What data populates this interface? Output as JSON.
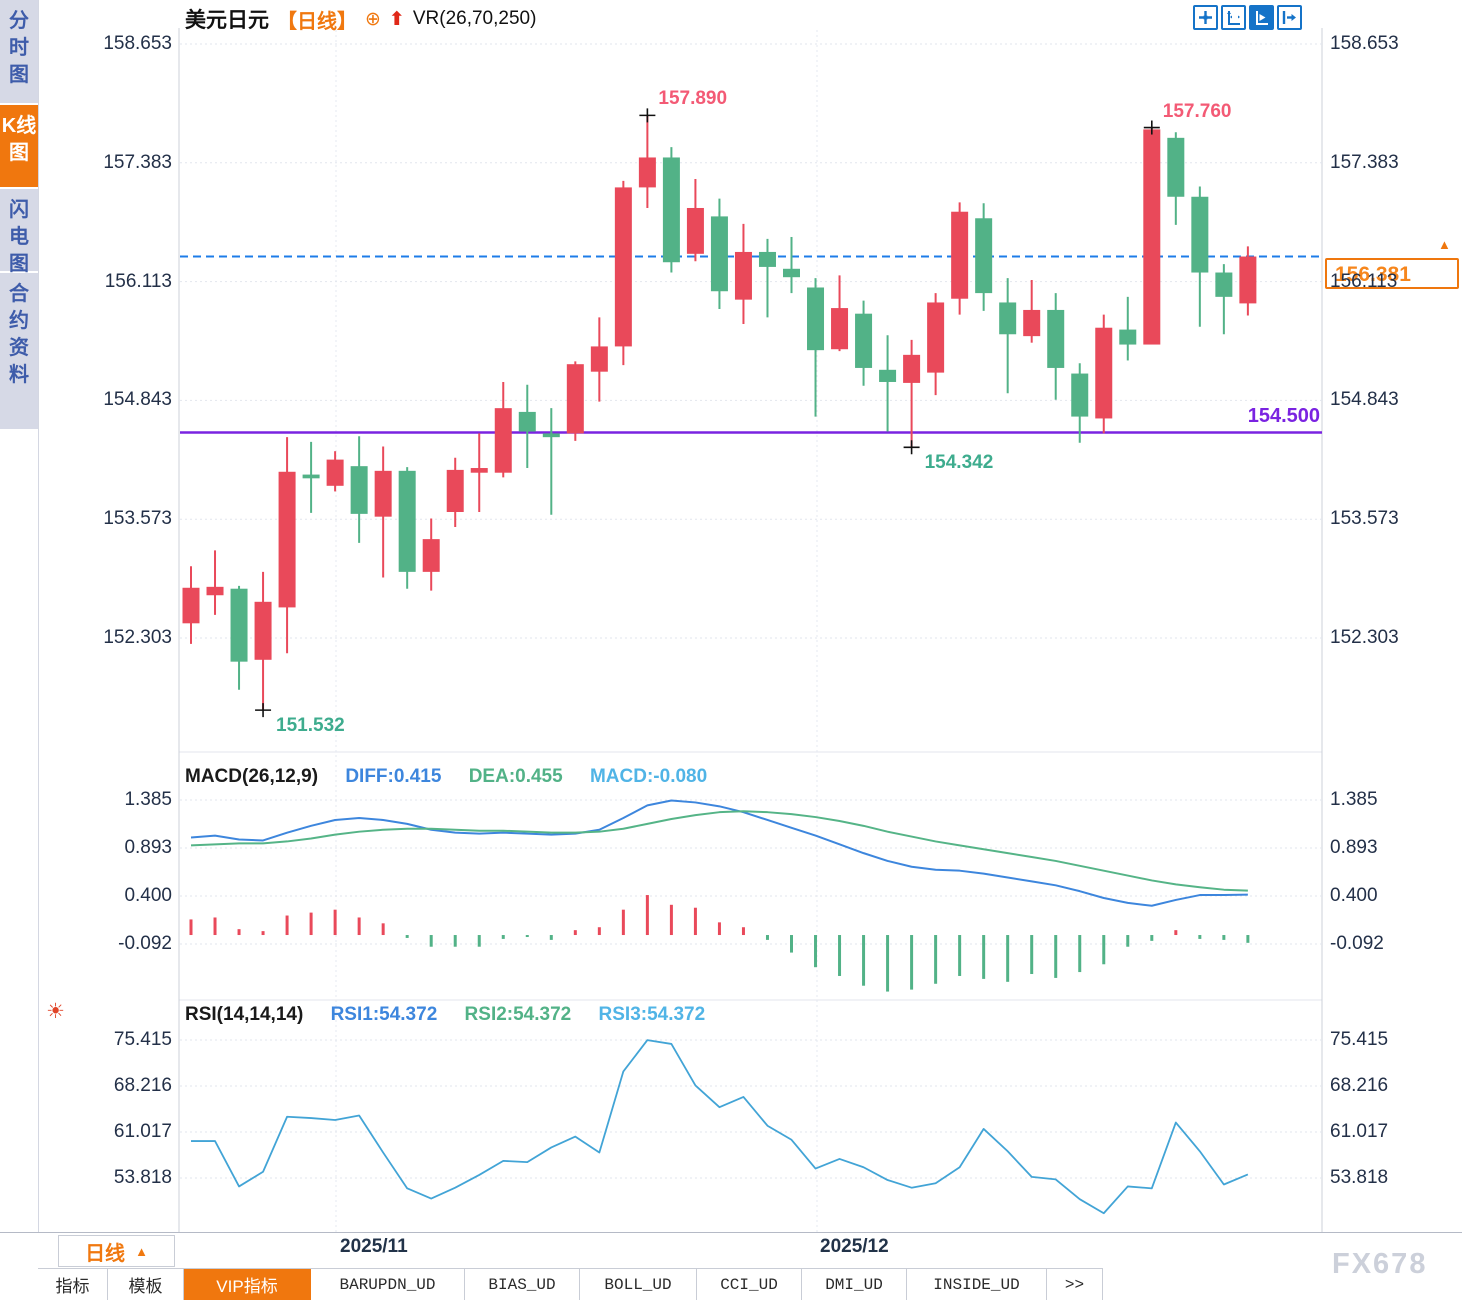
{
  "sidebar": {
    "items": [
      {
        "label": "分时图",
        "active": false
      },
      {
        "label": "K线图",
        "active": true
      },
      {
        "label": "闪电图",
        "active": false
      },
      {
        "label": "合约资料",
        "active": false
      }
    ]
  },
  "title": {
    "symbol": "美元日元",
    "period_tag": "【日线】",
    "indicator": "VR(26,70,250)"
  },
  "toolbar": {
    "buttons": [
      "pan-crosshair",
      "axis-scale",
      "auto-scroll",
      "jump-latest"
    ],
    "active_index": 2
  },
  "macd_header": {
    "name": "MACD(26,12,9)",
    "diff": "DIFF:0.415",
    "dea": "DEA:0.455",
    "macd": "MACD:-0.080"
  },
  "rsi_header": {
    "name": "RSI(14,14,14)",
    "rsi1": "RSI1:54.372",
    "rsi2": "RSI2:54.372",
    "rsi3": "RSI3:54.372"
  },
  "period_selector": {
    "label": "日线",
    "arrow": "▲"
  },
  "x_axis": {
    "dates": [
      "2025/11",
      "2025/12"
    ]
  },
  "tabs": {
    "items": [
      {
        "label": "指标",
        "active": false
      },
      {
        "label": "模板",
        "active": false
      },
      {
        "label": "VIP指标",
        "active": true
      },
      {
        "label": "BARUPDN_UD",
        "active": false
      },
      {
        "label": "BIAS_UD",
        "active": false
      },
      {
        "label": "BOLL_UD",
        "active": false
      },
      {
        "label": "CCI_UD",
        "active": false
      },
      {
        "label": "DMI_UD",
        "active": false
      },
      {
        "label": "INSIDE_UD",
        "active": false
      },
      {
        "label": ">>",
        "active": false
      }
    ]
  },
  "watermark": "FX678",
  "colors": {
    "up": "#e9495a",
    "down": "#52b287",
    "diff_line": "#3d86dd",
    "dea_line": "#55b487",
    "rsi_line": "#42a4d6",
    "current_price_line": "#1d7ce8",
    "support_line": "#7a23e1",
    "accent_orange": "#f0770e",
    "annotation_high": "#f35a75",
    "annotation_low": "#3eac8e",
    "axis_text": "#233048",
    "grid": "#e2e6ed",
    "cross": "#111111"
  },
  "chart_data": {
    "type": "candlestick",
    "price": {
      "axis_labels": [
        "158.653",
        "157.383",
        "156.113",
        "154.843",
        "153.573",
        "152.303"
      ],
      "current": 156.381,
      "current_label": "156.381",
      "support": 154.5,
      "support_label": "154.500",
      "candles": [
        [
          152.46,
          153.07,
          152.24,
          152.84
        ],
        [
          152.76,
          153.24,
          152.55,
          152.85
        ],
        [
          152.83,
          152.86,
          151.75,
          152.05
        ],
        [
          152.07,
          153.01,
          151.532,
          152.69
        ],
        [
          152.63,
          154.45,
          152.14,
          154.08
        ],
        [
          154.05,
          154.4,
          153.64,
          154.01
        ],
        [
          153.93,
          154.3,
          153.87,
          154.21
        ],
        [
          154.14,
          154.46,
          153.32,
          153.63
        ],
        [
          153.6,
          154.35,
          152.95,
          154.09
        ],
        [
          154.09,
          154.13,
          152.83,
          153.01
        ],
        [
          153.01,
          153.58,
          152.81,
          153.36
        ],
        [
          153.65,
          154.23,
          153.49,
          154.1
        ],
        [
          154.07,
          154.49,
          153.65,
          154.12
        ],
        [
          154.07,
          155.04,
          154.02,
          154.76
        ],
        [
          154.72,
          155.01,
          154.12,
          154.51
        ],
        [
          154.49,
          154.76,
          153.62,
          154.45
        ],
        [
          154.49,
          155.26,
          154.41,
          155.23
        ],
        [
          155.15,
          155.73,
          154.83,
          155.42
        ],
        [
          155.42,
          157.19,
          155.22,
          157.12
        ],
        [
          157.12,
          157.89,
          156.9,
          157.44
        ],
        [
          157.44,
          157.55,
          156.21,
          156.32
        ],
        [
          156.41,
          157.21,
          156.33,
          156.9
        ],
        [
          156.81,
          157.0,
          155.82,
          156.01
        ],
        [
          155.92,
          156.73,
          155.66,
          156.43
        ],
        [
          156.43,
          156.57,
          155.73,
          156.27
        ],
        [
          156.25,
          156.59,
          155.99,
          156.16
        ],
        [
          156.05,
          156.15,
          154.67,
          155.38
        ],
        [
          155.39,
          156.18,
          155.37,
          155.83
        ],
        [
          155.77,
          155.91,
          155.0,
          155.19
        ],
        [
          155.17,
          155.54,
          154.51,
          155.04
        ],
        [
          155.03,
          155.49,
          154.342,
          155.33
        ],
        [
          155.14,
          155.99,
          154.9,
          155.89
        ],
        [
          155.93,
          156.96,
          155.76,
          156.86
        ],
        [
          156.79,
          156.95,
          155.8,
          155.99
        ],
        [
          155.89,
          156.15,
          154.92,
          155.55
        ],
        [
          155.53,
          156.13,
          155.46,
          155.81
        ],
        [
          155.81,
          155.99,
          154.85,
          155.19
        ],
        [
          155.13,
          155.24,
          154.39,
          154.67
        ],
        [
          154.65,
          155.76,
          154.49,
          155.62
        ],
        [
          155.6,
          155.95,
          155.27,
          155.44
        ],
        [
          155.44,
          157.76,
          155.44,
          157.74
        ],
        [
          157.65,
          157.71,
          156.72,
          157.02
        ],
        [
          157.02,
          157.13,
          155.63,
          156.21
        ],
        [
          156.21,
          156.3,
          155.55,
          155.95
        ],
        [
          155.88,
          156.49,
          155.75,
          156.381
        ]
      ],
      "markers": [
        {
          "index": 19,
          "type": "high",
          "value": 157.89,
          "label": "157.890"
        },
        {
          "index": 40,
          "type": "high",
          "value": 157.76,
          "label": "157.760"
        },
        {
          "index": 3,
          "type": "low",
          "value": 151.532,
          "label": "151.532"
        },
        {
          "index": 30,
          "type": "low",
          "value": 154.342,
          "label": "154.342"
        }
      ]
    },
    "macd": {
      "axis_labels": [
        "1.385",
        "0.893",
        "0.400",
        "-0.092"
      ],
      "diff": [
        1.0,
        1.02,
        0.98,
        0.97,
        1.05,
        1.12,
        1.18,
        1.2,
        1.18,
        1.14,
        1.08,
        1.05,
        1.04,
        1.05,
        1.04,
        1.03,
        1.04,
        1.08,
        1.2,
        1.33,
        1.38,
        1.36,
        1.32,
        1.26,
        1.18,
        1.1,
        1.02,
        0.93,
        0.84,
        0.76,
        0.7,
        0.67,
        0.66,
        0.63,
        0.59,
        0.55,
        0.51,
        0.45,
        0.38,
        0.33,
        0.3,
        0.36,
        0.41,
        0.41,
        0.415
      ],
      "dea": [
        0.92,
        0.93,
        0.94,
        0.94,
        0.96,
        0.99,
        1.03,
        1.06,
        1.08,
        1.09,
        1.09,
        1.08,
        1.07,
        1.07,
        1.06,
        1.05,
        1.05,
        1.06,
        1.09,
        1.14,
        1.19,
        1.23,
        1.26,
        1.27,
        1.26,
        1.24,
        1.21,
        1.17,
        1.12,
        1.06,
        1.01,
        0.96,
        0.92,
        0.88,
        0.84,
        0.8,
        0.76,
        0.71,
        0.66,
        0.61,
        0.56,
        0.52,
        0.49,
        0.465,
        0.455
      ],
      "hist": [
        0.16,
        0.18,
        0.06,
        0.04,
        0.2,
        0.23,
        0.26,
        0.18,
        0.12,
        -0.03,
        -0.12,
        -0.12,
        -0.12,
        -0.04,
        -0.02,
        -0.05,
        0.05,
        0.08,
        0.26,
        0.41,
        0.31,
        0.28,
        0.13,
        0.08,
        -0.05,
        -0.18,
        -0.33,
        -0.42,
        -0.52,
        -0.58,
        -0.56,
        -0.5,
        -0.42,
        -0.45,
        -0.48,
        -0.4,
        -0.44,
        -0.38,
        -0.3,
        -0.12,
        -0.06,
        0.05,
        -0.04,
        -0.05,
        -0.08
      ]
    },
    "rsi": {
      "axis_labels": [
        "75.415",
        "68.216",
        "61.017",
        "53.818"
      ],
      "values": [
        59.6,
        59.6,
        52.5,
        54.8,
        63.4,
        63.2,
        62.9,
        63.6,
        57.8,
        52.2,
        50.6,
        52.3,
        54.3,
        56.5,
        56.3,
        58.6,
        60.3,
        57.8,
        70.5,
        75.4,
        74.8,
        68.3,
        64.9,
        66.5,
        62.0,
        59.8,
        55.3,
        56.8,
        55.5,
        53.5,
        52.3,
        53.0,
        55.5,
        61.5,
        58.0,
        54.0,
        53.6,
        50.5,
        48.3,
        52.5,
        52.2,
        62.5,
        58.0,
        52.8,
        54.372
      ]
    }
  }
}
